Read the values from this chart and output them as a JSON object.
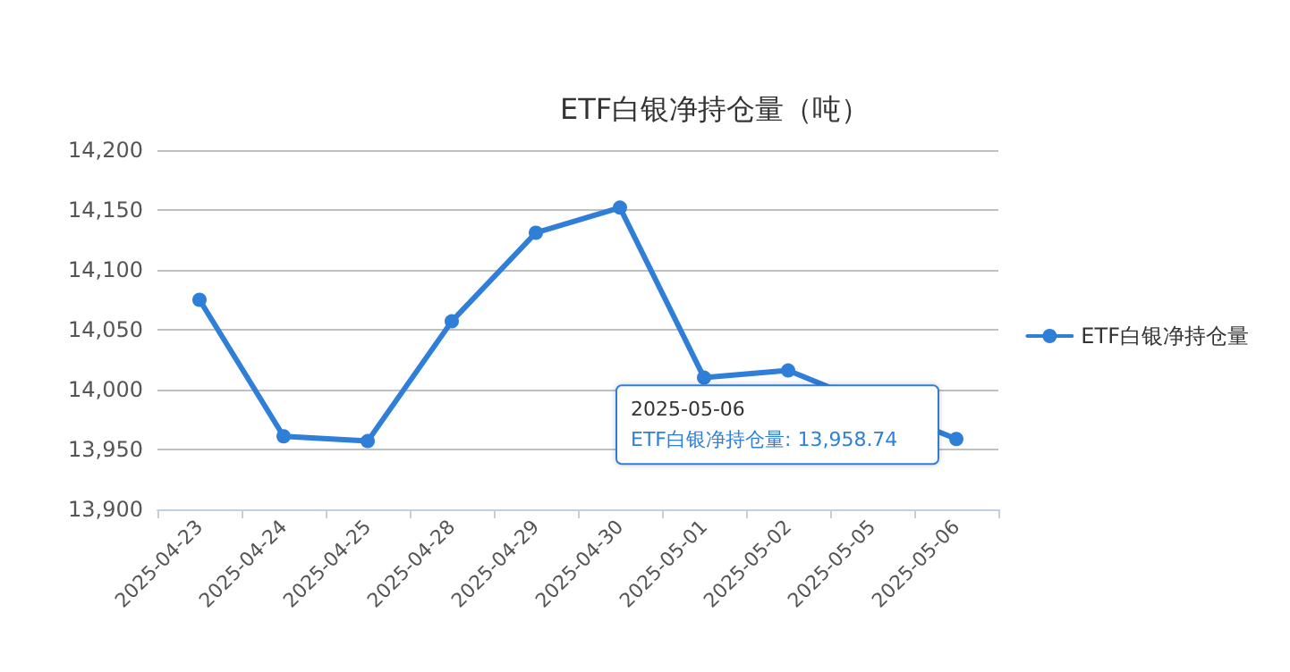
{
  "chart_data": {
    "type": "line",
    "title": "ETF白银净持仓量（吨）",
    "categories": [
      "2025-04-23",
      "2025-04-24",
      "2025-04-25",
      "2025-04-28",
      "2025-04-29",
      "2025-04-30",
      "2025-05-01",
      "2025-05-02",
      "2025-05-05",
      "2025-05-06"
    ],
    "series": [
      {
        "name": "ETF白银净持仓量",
        "color": "#2f7ed8",
        "values": [
          14075,
          13961,
          13957,
          14057,
          14131,
          14152,
          14010,
          14016,
          null,
          13958.74
        ]
      }
    ],
    "ylim": [
      13900,
      14200
    ],
    "yticks": [
      {
        "value": 13900,
        "label": "13,900"
      },
      {
        "value": 13950,
        "label": "13,950"
      },
      {
        "value": 14000,
        "label": "14,000"
      },
      {
        "value": 14050,
        "label": "14,050"
      },
      {
        "value": 14100,
        "label": "14,100"
      },
      {
        "value": 14150,
        "label": "14,150"
      },
      {
        "value": 14200,
        "label": "14,200"
      }
    ],
    "grid": "y",
    "legend": "right",
    "marker": "circle",
    "line_style": "solid",
    "annotations": [
      "2025-05-06\nETF白银净持仓量: 13,958.74"
    ]
  }
}
